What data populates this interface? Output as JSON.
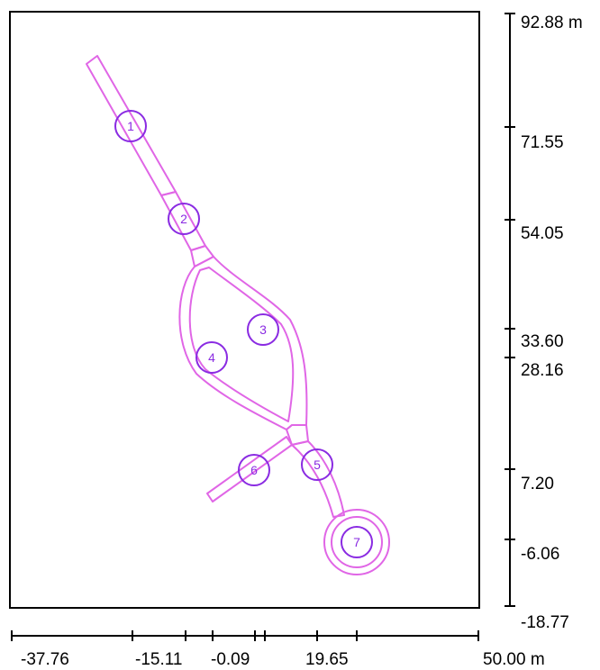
{
  "colors": {
    "path": "#e066e6",
    "marker": "#8a2be2",
    "frame": "#000000"
  },
  "x_axis": {
    "ticks": [
      "-37.76",
      "-15.11",
      "-0.09",
      "19.65",
      "50.00 m"
    ]
  },
  "y_axis": {
    "ticks": [
      "92.88 m",
      "71.55",
      "54.05",
      "33.60",
      "28.16",
      "7.20",
      "-6.06",
      "-18.77"
    ]
  },
  "markers": [
    {
      "label": "1"
    },
    {
      "label": "2"
    },
    {
      "label": "3"
    },
    {
      "label": "4"
    },
    {
      "label": "5"
    },
    {
      "label": "6"
    },
    {
      "label": "7"
    }
  ]
}
